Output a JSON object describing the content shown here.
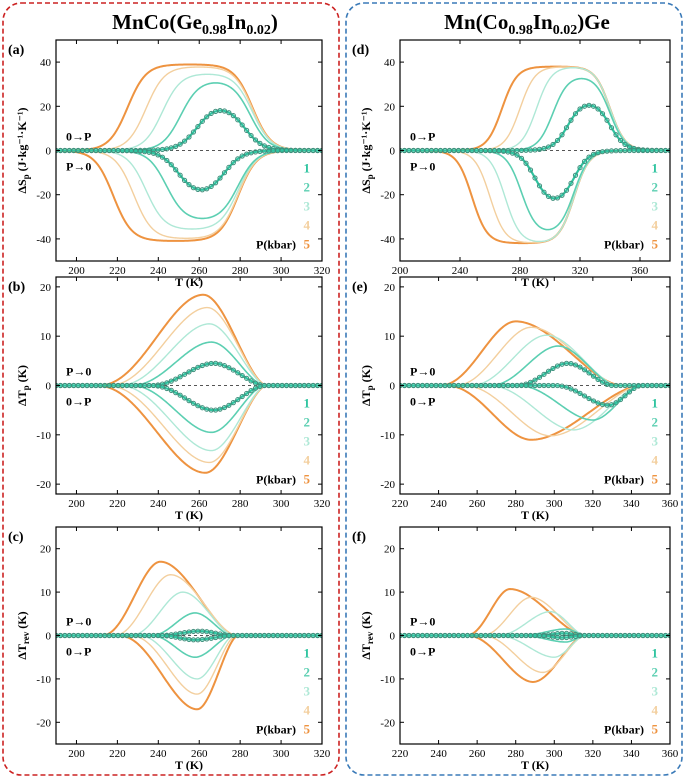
{
  "figure": {
    "left_title": {
      "base": "MnCo(Ge",
      "sub1": "0.98",
      "mid": "In",
      "sub2": "0.02",
      "end": ")"
    },
    "right_title": {
      "base": "Mn(Co",
      "sub1": "0.98",
      "mid": "In",
      "sub2": "0.02",
      "end": ")Ge"
    },
    "legend": {
      "numbers": [
        "1",
        "2",
        "3",
        "4",
        "5"
      ],
      "label": "P(kbar)"
    },
    "pressure_labels": {
      "zero_to_p": "0→P",
      "p_to_zero": "P→0"
    },
    "colors": {
      "p1": "#2fc4a0",
      "p2": "#5ccfb2",
      "p3": "#aee8d6",
      "p4": "#f3cf9e",
      "p5": "#ee9340",
      "left_frame": "#cc2222",
      "right_frame": "#3a7ab8"
    }
  },
  "chart_data": [
    {
      "id": "a",
      "panel_label": "(a)",
      "type": "line",
      "ylabel": {
        "main": "ΔS",
        "sub": "p",
        "unit": "(J·kg⁻¹·K⁻¹)"
      },
      "xlabel": "T (K)",
      "xlim": [
        190,
        320
      ],
      "ylim": [
        -50,
        50
      ],
      "xticks": [
        200,
        220,
        240,
        260,
        280,
        300,
        320
      ],
      "yticks": [
        -40,
        -20,
        0,
        20,
        40
      ],
      "top_label": "0→P",
      "bottom_label": "P→0",
      "series": [
        {
          "name": "1",
          "kind": "peak",
          "sign": 1,
          "sat": 21,
          "start": 259,
          "end": 282,
          "sigma": 4.5
        },
        {
          "name": "2",
          "kind": "peak",
          "sign": 1,
          "sat": 32,
          "start": 251,
          "end": 285,
          "sigma": 4.5
        },
        {
          "name": "3",
          "kind": "peak",
          "sign": 1,
          "sat": 35,
          "start": 242,
          "end": 286,
          "sigma": 4.5
        },
        {
          "name": "4",
          "kind": "peak",
          "sign": 1,
          "sat": 38,
          "start": 234,
          "end": 286,
          "sigma": 4.5
        },
        {
          "name": "5",
          "kind": "peak",
          "sign": 1,
          "sat": 39,
          "start": 225,
          "end": 286,
          "sigma": 4.5
        },
        {
          "name": "1",
          "kind": "peak",
          "sign": -1,
          "sat": 21,
          "start": 250,
          "end": 272,
          "sigma": 4.5
        },
        {
          "name": "2",
          "kind": "peak",
          "sign": -1,
          "sat": 32,
          "start": 244,
          "end": 279,
          "sigma": 4.5
        },
        {
          "name": "3",
          "kind": "peak",
          "sign": -1,
          "sat": 36,
          "start": 234,
          "end": 279,
          "sigma": 4.5
        },
        {
          "name": "4",
          "kind": "peak",
          "sign": -1,
          "sat": 40,
          "start": 228,
          "end": 279,
          "sigma": 4.5
        },
        {
          "name": "5",
          "kind": "peak",
          "sign": -1,
          "sat": 41,
          "start": 218,
          "end": 279,
          "sigma": 4.5
        }
      ]
    },
    {
      "id": "b",
      "panel_label": "(b)",
      "type": "line",
      "ylabel": {
        "main": "ΔT",
        "sub": "p",
        "unit": "(K)"
      },
      "xlabel": "T (K)",
      "xlim": [
        190,
        320
      ],
      "ylim": [
        -22,
        22
      ],
      "xticks": [
        200,
        220,
        240,
        260,
        280,
        300,
        320
      ],
      "yticks": [
        -20,
        -10,
        0,
        10,
        20
      ],
      "top_label": "P→0",
      "bottom_label": "0→P",
      "series": [
        {
          "name": "1",
          "kind": "tri",
          "sign": 1,
          "amp": 4.5,
          "peak": 267,
          "start": 236,
          "end": 292
        },
        {
          "name": "2",
          "kind": "tri",
          "sign": 1,
          "amp": 8.8,
          "peak": 266,
          "start": 226,
          "end": 292
        },
        {
          "name": "3",
          "kind": "tri",
          "sign": 1,
          "amp": 12.5,
          "peak": 265,
          "start": 220,
          "end": 293
        },
        {
          "name": "4",
          "kind": "tri",
          "sign": 1,
          "amp": 15.8,
          "peak": 264,
          "start": 215,
          "end": 293
        },
        {
          "name": "5",
          "kind": "tri",
          "sign": 1,
          "amp": 18.4,
          "peak": 262,
          "start": 210,
          "end": 293
        },
        {
          "name": "1",
          "kind": "tri",
          "sign": -1,
          "amp": 5,
          "peak": 267,
          "start": 236,
          "end": 292
        },
        {
          "name": "2",
          "kind": "tri",
          "sign": -1,
          "amp": 9.5,
          "peak": 266,
          "start": 226,
          "end": 292
        },
        {
          "name": "3",
          "kind": "tri",
          "sign": -1,
          "amp": 13.2,
          "peak": 266,
          "start": 220,
          "end": 293
        },
        {
          "name": "4",
          "kind": "tri",
          "sign": -1,
          "amp": 15.6,
          "peak": 265,
          "start": 214,
          "end": 293
        },
        {
          "name": "5",
          "kind": "tri",
          "sign": -1,
          "amp": 17.7,
          "peak": 263,
          "start": 209,
          "end": 293
        }
      ]
    },
    {
      "id": "c",
      "panel_label": "(c)",
      "type": "line",
      "ylabel": {
        "main": "ΔT",
        "sub": "rev",
        "unit": "(K)"
      },
      "xlabel": "T (K)",
      "xlim": [
        190,
        320
      ],
      "ylim": [
        -25,
        25
      ],
      "xticks": [
        200,
        220,
        240,
        260,
        280,
        300,
        320
      ],
      "yticks": [
        -20,
        -10,
        0,
        10,
        20
      ],
      "top_label": "P→0",
      "bottom_label": "0→P",
      "series": [
        {
          "name": "1",
          "kind": "tri",
          "sign": 1,
          "amp": 1.0,
          "peak": 260,
          "start": 240,
          "end": 276
        },
        {
          "name": "2",
          "kind": "tri",
          "sign": 1,
          "amp": 5.2,
          "peak": 258,
          "start": 236,
          "end": 276
        },
        {
          "name": "3",
          "kind": "tri",
          "sign": 1,
          "amp": 10,
          "peak": 252,
          "start": 226,
          "end": 277
        },
        {
          "name": "4",
          "kind": "tri",
          "sign": 1,
          "amp": 14,
          "peak": 246,
          "start": 218,
          "end": 278
        },
        {
          "name": "5",
          "kind": "tri",
          "sign": 1,
          "amp": 17,
          "peak": 241,
          "start": 212,
          "end": 278
        },
        {
          "name": "1",
          "kind": "tri",
          "sign": -1,
          "amp": 1.0,
          "peak": 258,
          "start": 240,
          "end": 276
        },
        {
          "name": "2",
          "kind": "tri",
          "sign": -1,
          "amp": 5,
          "peak": 258,
          "start": 236,
          "end": 276
        },
        {
          "name": "3",
          "kind": "tri",
          "sign": -1,
          "amp": 10,
          "peak": 259,
          "start": 230,
          "end": 277
        },
        {
          "name": "4",
          "kind": "tri",
          "sign": -1,
          "amp": 13.5,
          "peak": 259,
          "start": 226,
          "end": 278
        },
        {
          "name": "5",
          "kind": "tri",
          "sign": -1,
          "amp": 17,
          "peak": 259,
          "start": 220,
          "end": 279
        }
      ]
    },
    {
      "id": "d",
      "panel_label": "(d)",
      "type": "line",
      "ylabel": {
        "main": "ΔS",
        "sub": "p",
        "unit": "(J·kg⁻¹·K⁻¹)"
      },
      "xlabel": "T (K)",
      "xlim": [
        200,
        380
      ],
      "ylim": [
        -50,
        50
      ],
      "xticks": [
        200,
        240,
        280,
        320,
        360
      ],
      "yticks": [
        -40,
        -20,
        0,
        20,
        40
      ],
      "top_label": "0→P",
      "bottom_label": "P→0",
      "series": [
        {
          "name": "1",
          "kind": "peak",
          "sign": 1,
          "sat": 23,
          "start": 312,
          "end": 340,
          "sigma": 5
        },
        {
          "name": "2",
          "kind": "peak",
          "sign": 1,
          "sat": 34,
          "start": 302,
          "end": 340,
          "sigma": 5
        },
        {
          "name": "3",
          "kind": "peak",
          "sign": 1,
          "sat": 38,
          "start": 291,
          "end": 340,
          "sigma": 5
        },
        {
          "name": "4",
          "kind": "peak",
          "sign": 1,
          "sat": 38,
          "start": 280,
          "end": 340,
          "sigma": 5
        },
        {
          "name": "5",
          "kind": "peak",
          "sign": 1,
          "sat": 38,
          "start": 268,
          "end": 340,
          "sigma": 5
        },
        {
          "name": "1",
          "kind": "peak",
          "sign": -1,
          "sat": 25,
          "start": 290,
          "end": 316,
          "sigma": 5
        },
        {
          "name": "2",
          "kind": "peak",
          "sign": -1,
          "sat": 38,
          "start": 281,
          "end": 316,
          "sigma": 5
        },
        {
          "name": "3",
          "kind": "peak",
          "sign": -1,
          "sat": 42,
          "start": 270,
          "end": 316,
          "sigma": 5
        },
        {
          "name": "4",
          "kind": "peak",
          "sign": -1,
          "sat": 42,
          "start": 260,
          "end": 316,
          "sigma": 5
        },
        {
          "name": "5",
          "kind": "peak",
          "sign": -1,
          "sat": 42,
          "start": 248,
          "end": 316,
          "sigma": 5
        }
      ]
    },
    {
      "id": "e",
      "panel_label": "(e)",
      "type": "line",
      "ylabel": {
        "main": "ΔT",
        "sub": "p",
        "unit": "(K)"
      },
      "xlabel": "T (K)",
      "xlim": [
        220,
        360
      ],
      "ylim": [
        -22,
        22
      ],
      "xticks": [
        220,
        240,
        260,
        280,
        300,
        320,
        340,
        360
      ],
      "yticks": [
        -20,
        -10,
        0,
        10,
        20
      ],
      "top_label": "P→0",
      "bottom_label": "0→P",
      "series": [
        {
          "name": "1",
          "kind": "tri",
          "sign": 1,
          "amp": 4.5,
          "peak": 307,
          "start": 280,
          "end": 330
        },
        {
          "name": "2",
          "kind": "tri",
          "sign": 1,
          "amp": 8,
          "peak": 302,
          "start": 266,
          "end": 332
        },
        {
          "name": "3",
          "kind": "tri",
          "sign": 1,
          "amp": 10.2,
          "peak": 296,
          "start": 256,
          "end": 333
        },
        {
          "name": "4",
          "kind": "tri",
          "sign": 1,
          "amp": 11.8,
          "peak": 288,
          "start": 248,
          "end": 334
        },
        {
          "name": "5",
          "kind": "tri",
          "sign": 1,
          "amp": 13,
          "peak": 280,
          "start": 240,
          "end": 335
        },
        {
          "name": "1",
          "kind": "tri",
          "sign": -1,
          "amp": 4,
          "peak": 328,
          "start": 300,
          "end": 345
        },
        {
          "name": "2",
          "kind": "tri",
          "sign": -1,
          "amp": 7,
          "peak": 320,
          "start": 280,
          "end": 345
        },
        {
          "name": "3",
          "kind": "tri",
          "sign": -1,
          "amp": 9,
          "peak": 310,
          "start": 265,
          "end": 345
        },
        {
          "name": "4",
          "kind": "tri",
          "sign": -1,
          "amp": 10.2,
          "peak": 298,
          "start": 252,
          "end": 345
        },
        {
          "name": "5",
          "kind": "tri",
          "sign": -1,
          "amp": 11,
          "peak": 288,
          "start": 243,
          "end": 345
        }
      ]
    },
    {
      "id": "f",
      "panel_label": "(f)",
      "type": "line",
      "ylabel": {
        "main": "ΔT",
        "sub": "rev",
        "unit": "(K)"
      },
      "xlabel": "T (K)",
      "xlim": [
        220,
        360
      ],
      "ylim": [
        -25,
        25
      ],
      "xticks": [
        220,
        240,
        260,
        280,
        300,
        320,
        340,
        360
      ],
      "yticks": [
        -20,
        -10,
        0,
        10,
        20
      ],
      "top_label": "P→0",
      "bottom_label": "0→P",
      "series": [
        {
          "name": "1",
          "kind": "tri",
          "sign": 1,
          "amp": 0.5,
          "peak": 305,
          "start": 290,
          "end": 316
        },
        {
          "name": "2",
          "kind": "tri",
          "sign": 1,
          "amp": 1.5,
          "peak": 306,
          "start": 282,
          "end": 316
        },
        {
          "name": "3",
          "kind": "tri",
          "sign": 1,
          "amp": 5.5,
          "peak": 298,
          "start": 270,
          "end": 316
        },
        {
          "name": "4",
          "kind": "tri",
          "sign": 1,
          "amp": 8.8,
          "peak": 288,
          "start": 262,
          "end": 316
        },
        {
          "name": "5",
          "kind": "tri",
          "sign": 1,
          "amp": 10.7,
          "peak": 277,
          "start": 254,
          "end": 316
        },
        {
          "name": "1",
          "kind": "tri",
          "sign": -1,
          "amp": 0.5,
          "peak": 304,
          "start": 290,
          "end": 316
        },
        {
          "name": "2",
          "kind": "tri",
          "sign": -1,
          "amp": 1.5,
          "peak": 306,
          "start": 282,
          "end": 316
        },
        {
          "name": "3",
          "kind": "tri",
          "sign": -1,
          "amp": 5,
          "peak": 300,
          "start": 270,
          "end": 316
        },
        {
          "name": "4",
          "kind": "tri",
          "sign": -1,
          "amp": 8.5,
          "peak": 294,
          "start": 262,
          "end": 316
        },
        {
          "name": "5",
          "kind": "tri",
          "sign": -1,
          "amp": 10.7,
          "peak": 289,
          "start": 254,
          "end": 316
        }
      ]
    }
  ]
}
